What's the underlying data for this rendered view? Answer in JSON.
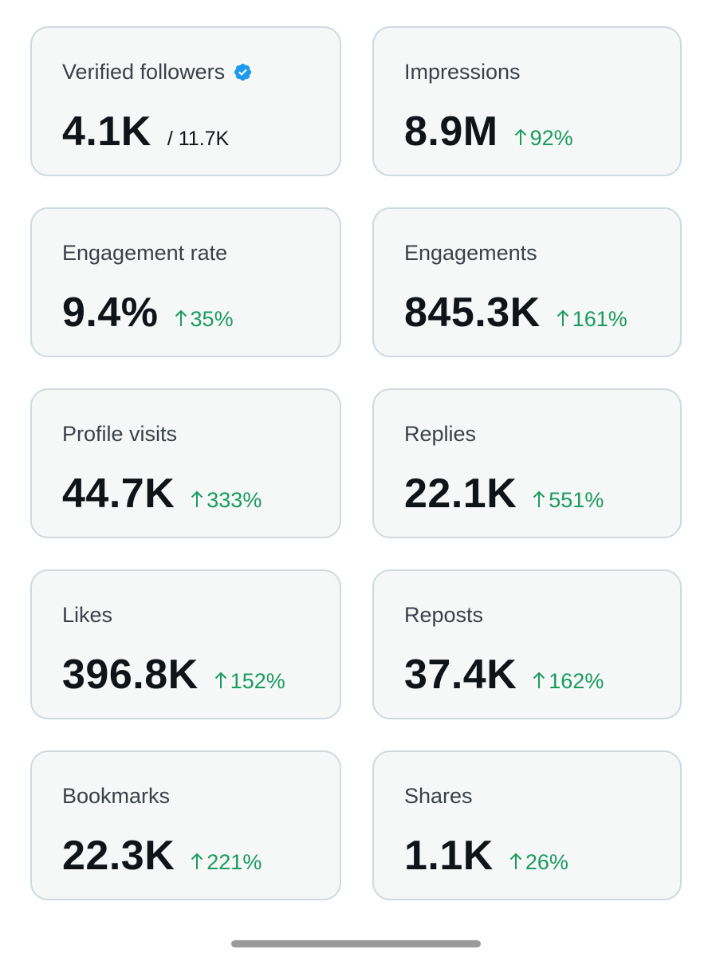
{
  "colors": {
    "card_background": "#f6f7f7",
    "card_border": "#cfd9de",
    "positive_change": "#1a9c60",
    "verified_badge": "#1d9bf0",
    "value_text": "#0f1419",
    "title_text": "#3a4148"
  },
  "cards": [
    {
      "title": "Verified followers",
      "value": "4.1K",
      "total": "/ 11.7K",
      "icon": "verified-badge-icon"
    },
    {
      "title": "Impressions",
      "value": "8.9M",
      "change": "92%",
      "icon": "arrow-up-icon"
    },
    {
      "title": "Engagement rate",
      "value": "9.4%",
      "change": "35%",
      "icon": "arrow-up-icon"
    },
    {
      "title": "Engagements",
      "value": "845.3K",
      "change": "161%",
      "icon": "arrow-up-icon"
    },
    {
      "title": "Profile visits",
      "value": "44.7K",
      "change": "333%",
      "icon": "arrow-up-icon"
    },
    {
      "title": "Replies",
      "value": "22.1K",
      "change": "551%",
      "icon": "arrow-up-icon"
    },
    {
      "title": "Likes",
      "value": "396.8K",
      "change": "152%",
      "icon": "arrow-up-icon"
    },
    {
      "title": "Reposts",
      "value": "37.4K",
      "change": "162%",
      "icon": "arrow-up-icon"
    },
    {
      "title": "Bookmarks",
      "value": "22.3K",
      "change": "221%",
      "icon": "arrow-up-icon"
    },
    {
      "title": "Shares",
      "value": "1.1K",
      "change": "26%",
      "icon": "arrow-up-icon"
    }
  ]
}
